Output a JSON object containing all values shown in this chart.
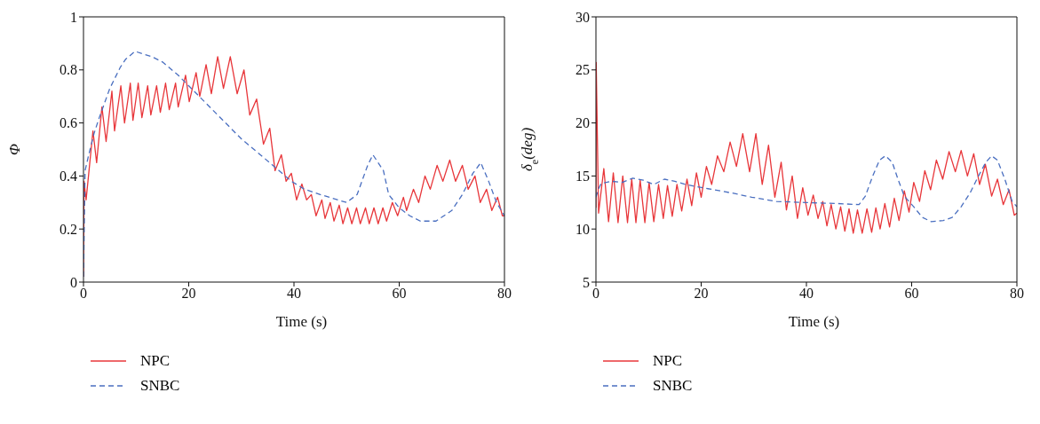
{
  "chart_data": [
    {
      "type": "line",
      "xlabel": "Time (s)",
      "ylabel": "Φ",
      "xlim": [
        0,
        80
      ],
      "xticks": [
        0,
        20,
        40,
        60,
        80
      ],
      "ylim": [
        0,
        1
      ],
      "yticks": [
        0,
        0.2,
        0.4,
        0.6,
        0.8,
        1
      ],
      "legend": "bottom",
      "marker": "none",
      "series": [
        {
          "name": "NPC",
          "color": "#e8363a",
          "line_style": "solid",
          "x": [
            0,
            0.1,
            0.5,
            1.8,
            2.5,
            3.5,
            4.3,
            5.4,
            5.9,
            7.1,
            7.8,
            8.9,
            9.4,
            10.4,
            11.1,
            12.2,
            12.8,
            13.9,
            14.6,
            15.6,
            16.3,
            17.5,
            18.0,
            19.4,
            20.1,
            21.4,
            22.1,
            23.3,
            24.3,
            25.5,
            26.6,
            27.9,
            29.2,
            30.5,
            31.6,
            32.9,
            34.2,
            35.4,
            36.4,
            37.6,
            38.5,
            39.5,
            40.5,
            41.5,
            42.4,
            43.3,
            44.2,
            45.3,
            45.9,
            46.9,
            47.6,
            48.6,
            49.3,
            50.2,
            51.0,
            51.9,
            52.6,
            53.6,
            54.3,
            55.2,
            56.0,
            56.9,
            57.6,
            58.7,
            59.7,
            60.8,
            61.4,
            62.7,
            63.7,
            64.9,
            65.9,
            67.2,
            68.3,
            69.6,
            70.7,
            72.0,
            73.1,
            74.4,
            75.4,
            76.6,
            77.6,
            78.7,
            79.6,
            80
          ],
          "values": [
            0.02,
            0.38,
            0.31,
            0.57,
            0.45,
            0.66,
            0.53,
            0.72,
            0.57,
            0.74,
            0.6,
            0.75,
            0.61,
            0.75,
            0.62,
            0.74,
            0.63,
            0.74,
            0.64,
            0.75,
            0.65,
            0.75,
            0.66,
            0.78,
            0.68,
            0.79,
            0.7,
            0.82,
            0.71,
            0.85,
            0.73,
            0.85,
            0.71,
            0.8,
            0.63,
            0.69,
            0.52,
            0.58,
            0.42,
            0.48,
            0.38,
            0.41,
            0.31,
            0.37,
            0.31,
            0.33,
            0.25,
            0.31,
            0.24,
            0.3,
            0.23,
            0.29,
            0.22,
            0.28,
            0.22,
            0.28,
            0.22,
            0.28,
            0.22,
            0.28,
            0.22,
            0.28,
            0.23,
            0.3,
            0.25,
            0.32,
            0.27,
            0.35,
            0.3,
            0.4,
            0.35,
            0.44,
            0.38,
            0.46,
            0.38,
            0.44,
            0.35,
            0.4,
            0.3,
            0.35,
            0.27,
            0.32,
            0.25,
            0.25
          ]
        },
        {
          "name": "SNBC",
          "color": "#4a6fc0",
          "line_style": "dashed",
          "x": [
            0,
            0.3,
            1,
            2,
            3,
            5,
            7,
            8,
            9.8,
            13,
            15,
            18,
            20,
            22,
            25,
            28,
            30,
            33,
            36,
            39.5,
            42,
            45,
            50,
            52,
            54,
            55,
            57,
            58,
            60,
            62,
            64,
            67,
            70,
            72,
            74,
            75.5,
            77,
            78.5,
            80
          ],
          "values": [
            0.02,
            0.42,
            0.48,
            0.56,
            0.62,
            0.73,
            0.81,
            0.84,
            0.87,
            0.85,
            0.83,
            0.78,
            0.74,
            0.7,
            0.64,
            0.58,
            0.54,
            0.49,
            0.44,
            0.38,
            0.35,
            0.33,
            0.3,
            0.33,
            0.44,
            0.48,
            0.42,
            0.33,
            0.28,
            0.25,
            0.23,
            0.23,
            0.27,
            0.33,
            0.41,
            0.45,
            0.38,
            0.3,
            0.25
          ]
        }
      ]
    },
    {
      "type": "line",
      "xlabel": "Time (s)",
      "ylabel": "δ$_{e}$(deg)",
      "xlim": [
        0,
        80
      ],
      "xticks": [
        0,
        20,
        40,
        60,
        80
      ],
      "ylim": [
        5,
        30
      ],
      "yticks": [
        5,
        10,
        15,
        20,
        25,
        30
      ],
      "legend": "bottom",
      "marker": "none",
      "series": [
        {
          "name": "NPC",
          "color": "#e8363a",
          "line_style": "solid",
          "x": [
            0,
            0.05,
            0.5,
            1.5,
            2.4,
            3.3,
            4.2,
            5.1,
            6.0,
            6.8,
            7.6,
            8.4,
            9.3,
            10.1,
            11.0,
            11.9,
            12.8,
            13.6,
            14.5,
            15.4,
            16.3,
            17.3,
            18.2,
            19.1,
            20.0,
            21.0,
            22.0,
            23.1,
            24.3,
            25.5,
            26.7,
            27.9,
            29.2,
            30.4,
            31.6,
            32.8,
            34.0,
            35.2,
            36.2,
            37.3,
            38.3,
            39.3,
            40.3,
            41.3,
            42.2,
            43.1,
            43.9,
            44.7,
            45.6,
            46.5,
            47.3,
            48.1,
            48.9,
            49.7,
            50.6,
            51.5,
            52.4,
            53.2,
            54.0,
            54.9,
            55.8,
            56.7,
            57.6,
            58.6,
            59.5,
            60.4,
            61.5,
            62.5,
            63.6,
            64.7,
            65.9,
            67.1,
            68.3,
            69.4,
            70.6,
            71.8,
            72.9,
            74.0,
            75.2,
            76.3,
            77.4,
            78.5,
            79.5,
            80
          ],
          "values": [
            12,
            25.7,
            11.5,
            15.7,
            10.7,
            15.3,
            10.6,
            15,
            10.6,
            14.7,
            10.6,
            14.6,
            10.6,
            14.4,
            10.7,
            14.2,
            11,
            14.1,
            11.2,
            14.2,
            11.7,
            14.7,
            12.2,
            15.3,
            13,
            15.9,
            14.2,
            16.9,
            15.4,
            18.2,
            15.9,
            19,
            15.4,
            19,
            14.2,
            17.9,
            13,
            16.3,
            11.8,
            15,
            11,
            13.9,
            11.3,
            13.2,
            11,
            12.6,
            10.3,
            12.3,
            10,
            12.1,
            9.8,
            11.9,
            9.6,
            11.8,
            9.6,
            11.9,
            9.7,
            12,
            10,
            12.4,
            10.2,
            12.9,
            10.8,
            13.6,
            11.6,
            14.4,
            12.6,
            15.5,
            13.7,
            16.5,
            14.7,
            17.3,
            15.4,
            17.4,
            15,
            17.1,
            14.2,
            16.1,
            13.1,
            14.7,
            12.3,
            13.7,
            11.3,
            11.5
          ]
        },
        {
          "name": "SNBC",
          "color": "#4a6fc0",
          "line_style": "dashed",
          "x": [
            0,
            0.5,
            1,
            3,
            5,
            7,
            9,
            11,
            13,
            15,
            17,
            21.3,
            25.8,
            29.6,
            34.3,
            39.7,
            46,
            50,
            51.2,
            52.6,
            53.9,
            55,
            56.3,
            57.4,
            58.6,
            60.4,
            62,
            63.7,
            66,
            67.7,
            69.4,
            71.1,
            72.7,
            74.1,
            75.2,
            76.3,
            77.7,
            79.1,
            80
          ],
          "values": [
            13,
            13.8,
            14.3,
            14.5,
            14.4,
            14.8,
            14.6,
            14.2,
            14.7,
            14.5,
            14.2,
            13.8,
            13.4,
            13,
            12.6,
            12.5,
            12.4,
            12.3,
            13.1,
            15,
            16.5,
            16.9,
            16.3,
            14.7,
            13.1,
            12.1,
            11.1,
            10.7,
            10.8,
            11.1,
            12.1,
            13.4,
            15,
            16.3,
            16.9,
            16.5,
            14.7,
            12.6,
            12.1
          ]
        }
      ]
    }
  ]
}
